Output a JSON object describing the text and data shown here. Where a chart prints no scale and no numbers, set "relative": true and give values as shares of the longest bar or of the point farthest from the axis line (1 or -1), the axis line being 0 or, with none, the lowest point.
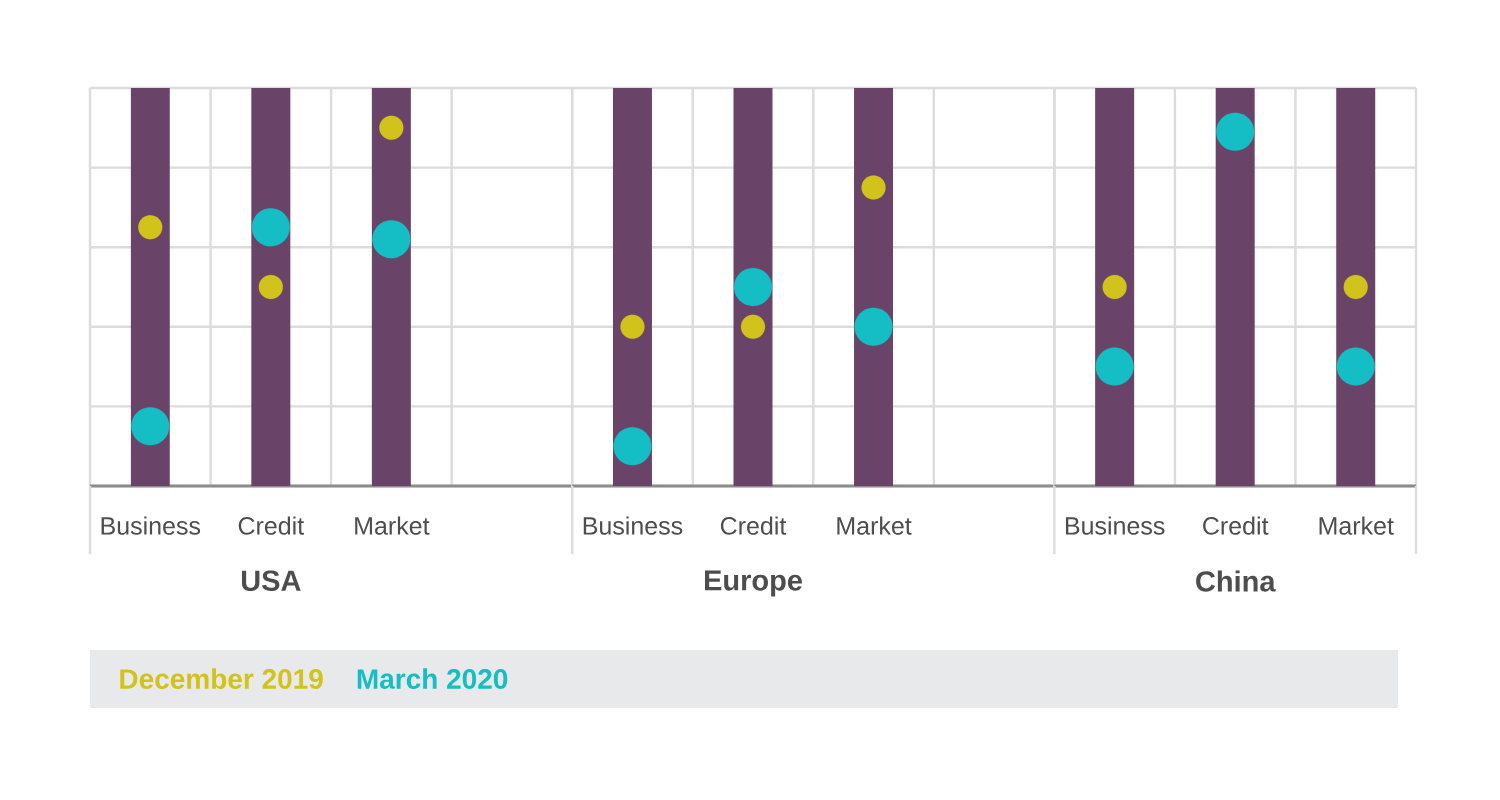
{
  "chart_data": [
    {
      "type": "bar",
      "xlabel": "USA",
      "categories": [
        "Business",
        "Credit",
        "Market"
      ],
      "relative": true,
      "grid": true,
      "legend": "bottom",
      "marker": "circle",
      "series": [
        {
          "color": "#6a4468",
          "values": [
            1,
            1,
            1
          ]
        },
        {
          "type": "scatter",
          "name": "December 2019",
          "color": "#d2c21c",
          "values": [
            0.65,
            0.5,
            0.9
          ]
        },
        {
          "type": "scatter",
          "name": "March 2020",
          "color": "#14bec4",
          "values": [
            0.15,
            0.65,
            0.62
          ]
        }
      ]
    },
    {
      "type": "bar",
      "xlabel": "Europe",
      "categories": [
        "Business",
        "Credit",
        "Market"
      ],
      "relative": true,
      "grid": true,
      "marker": "circle",
      "series": [
        {
          "color": "#6a4468",
          "values": [
            1,
            1,
            1
          ]
        },
        {
          "type": "scatter",
          "color": "#d2c21c",
          "values": [
            0.4,
            0.4,
            0.75
          ]
        },
        {
          "type": "scatter",
          "color": "#14bec4",
          "values": [
            0.1,
            0.5,
            0.4
          ]
        }
      ]
    },
    {
      "type": "bar",
      "xlabel": "China",
      "categories": [
        "Business",
        "Credit",
        "Market"
      ],
      "relative": true,
      "grid": true,
      "marker": "circle",
      "series": [
        {
          "color": "#6a4468",
          "values": [
            1,
            1,
            1
          ]
        },
        {
          "type": "scatter",
          "color": "#d2c21c",
          "values": [
            0.5,
            null,
            0.5
          ]
        },
        {
          "type": "scatter",
          "color": "#14bec4",
          "values": [
            0.3,
            0.89,
            0.3
          ]
        }
      ]
    }
  ]
}
